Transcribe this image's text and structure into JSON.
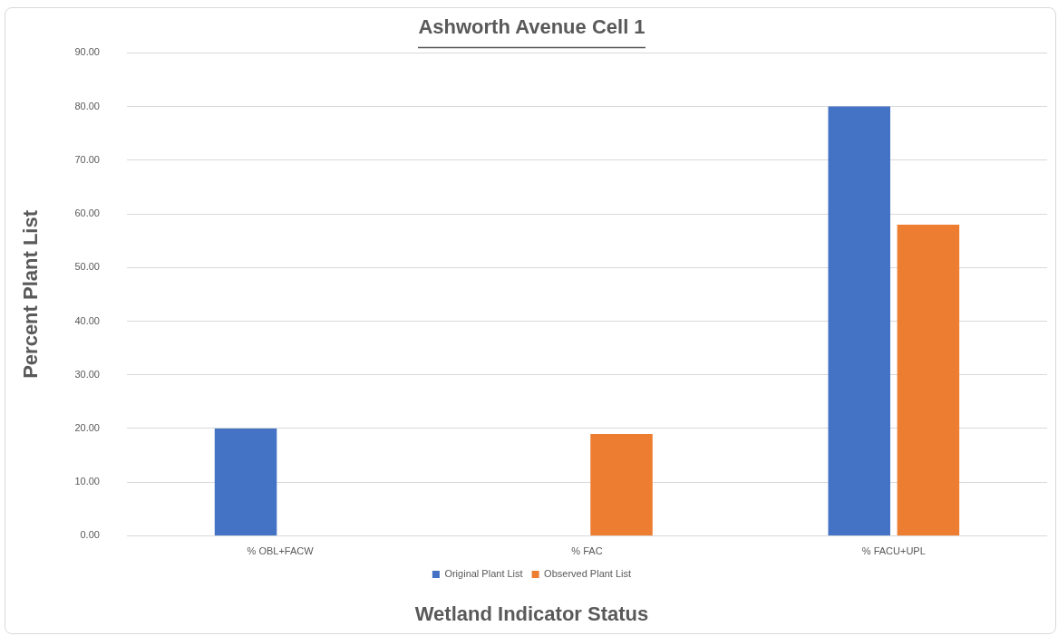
{
  "chart_data": {
    "type": "bar",
    "title": "Ashworth Avenue Cell 1",
    "xlabel": "Wetland Indicator Status",
    "ylabel": "Percent Plant List",
    "categories": [
      "% OBL+FACW",
      "% FAC",
      "% FACU+UPL"
    ],
    "series": [
      {
        "name": "Original Plant List",
        "color": "#4472c4",
        "values": [
          20,
          0,
          80
        ]
      },
      {
        "name": "Observed Plant List",
        "color": "#ed7d31",
        "values": [
          0,
          19,
          58
        ]
      }
    ],
    "ylim": [
      0,
      90
    ],
    "yticks": [
      {
        "value": 0,
        "label": "0.00"
      },
      {
        "value": 10,
        "label": "10.00"
      },
      {
        "value": 20,
        "label": "20.00"
      },
      {
        "value": 30,
        "label": "30.00"
      },
      {
        "value": 40,
        "label": "40.00"
      },
      {
        "value": 50,
        "label": "50.00"
      },
      {
        "value": 60,
        "label": "60.00"
      },
      {
        "value": 70,
        "label": "70.00"
      },
      {
        "value": 80,
        "label": "80.00"
      },
      {
        "value": 90,
        "label": "90.00"
      }
    ],
    "grid": "y",
    "legend": "bottom"
  }
}
